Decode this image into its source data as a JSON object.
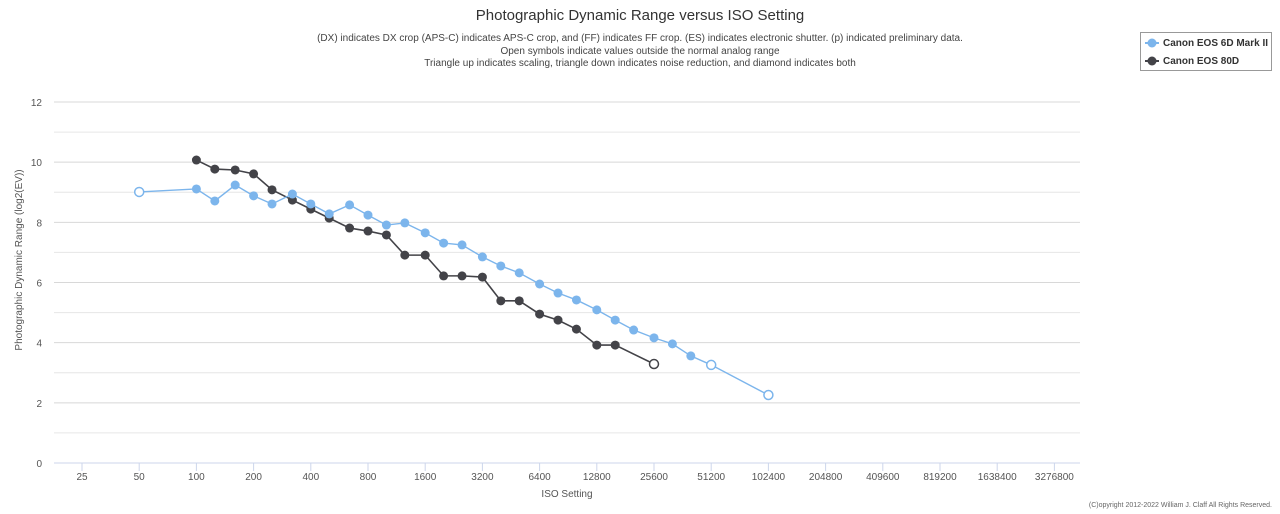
{
  "chart_data": {
    "type": "line",
    "title": "Photographic Dynamic Range versus ISO Setting",
    "subtitle": [
      "(DX) indicates DX crop (APS-C) indicates APS-C crop, and (FF) indicates FF crop. (ES) indicates electronic shutter. (p) indicated preliminary data.",
      "Open symbols indicate values outside the normal analog range",
      "Triangle up indicates scaling, triangle down indicates noise reduction, and diamond indicates both"
    ],
    "xlabel": "ISO Setting",
    "ylabel": "Photographic Dynamic Range (log2(EV))",
    "x_scale": "log2",
    "x_ticks": [
      "25",
      "50",
      "100",
      "200",
      "400",
      "800",
      "1600",
      "3200",
      "6400",
      "12800",
      "25600",
      "51200",
      "102400",
      "204800",
      "409600",
      "819200",
      "1638400",
      "3276800"
    ],
    "y_ticks": [
      "0",
      "2",
      "4",
      "6",
      "8",
      "10",
      "12"
    ],
    "ylim": [
      0,
      12
    ],
    "grid": true,
    "legend_position": "top-right",
    "series": [
      {
        "name": "Canon EOS 6D Mark II",
        "color": "#7cb5ec",
        "open": [
          50,
          51200,
          102400
        ],
        "points": [
          [
            50,
            9.01
          ],
          [
            100,
            9.11
          ],
          [
            125,
            8.71
          ],
          [
            160,
            9.24
          ],
          [
            200,
            8.88
          ],
          [
            250,
            8.61
          ],
          [
            320,
            8.94
          ],
          [
            400,
            8.61
          ],
          [
            500,
            8.28
          ],
          [
            640,
            8.58
          ],
          [
            800,
            8.24
          ],
          [
            1000,
            7.91
          ],
          [
            1250,
            7.98
          ],
          [
            1600,
            7.65
          ],
          [
            2000,
            7.31
          ],
          [
            2500,
            7.25
          ],
          [
            3200,
            6.85
          ],
          [
            4000,
            6.55
          ],
          [
            5000,
            6.32
          ],
          [
            6400,
            5.95
          ],
          [
            8000,
            5.65
          ],
          [
            10000,
            5.42
          ],
          [
            12800,
            5.09
          ],
          [
            16000,
            4.75
          ],
          [
            20000,
            4.42
          ],
          [
            25600,
            4.16
          ],
          [
            32000,
            3.96
          ],
          [
            40000,
            3.56
          ],
          [
            51200,
            3.26
          ],
          [
            102400,
            2.26
          ]
        ]
      },
      {
        "name": "Canon EOS 80D",
        "color": "#434348",
        "open": [
          25600
        ],
        "points": [
          [
            100,
            10.07
          ],
          [
            125,
            9.77
          ],
          [
            160,
            9.74
          ],
          [
            200,
            9.61
          ],
          [
            250,
            9.08
          ],
          [
            320,
            8.74
          ],
          [
            400,
            8.44
          ],
          [
            500,
            8.14
          ],
          [
            640,
            7.81
          ],
          [
            800,
            7.71
          ],
          [
            1000,
            7.58
          ],
          [
            1250,
            6.91
          ],
          [
            1600,
            6.91
          ],
          [
            2000,
            6.22
          ],
          [
            2500,
            6.22
          ],
          [
            3200,
            6.18
          ],
          [
            4000,
            5.39
          ],
          [
            5000,
            5.39
          ],
          [
            6400,
            4.95
          ],
          [
            8000,
            4.75
          ],
          [
            10000,
            4.45
          ],
          [
            12800,
            3.92
          ],
          [
            16000,
            3.92
          ],
          [
            25600,
            3.29
          ]
        ]
      }
    ]
  },
  "copyright": "(C)opyright 2012-2022 William J. Claff All Rights Reserved."
}
